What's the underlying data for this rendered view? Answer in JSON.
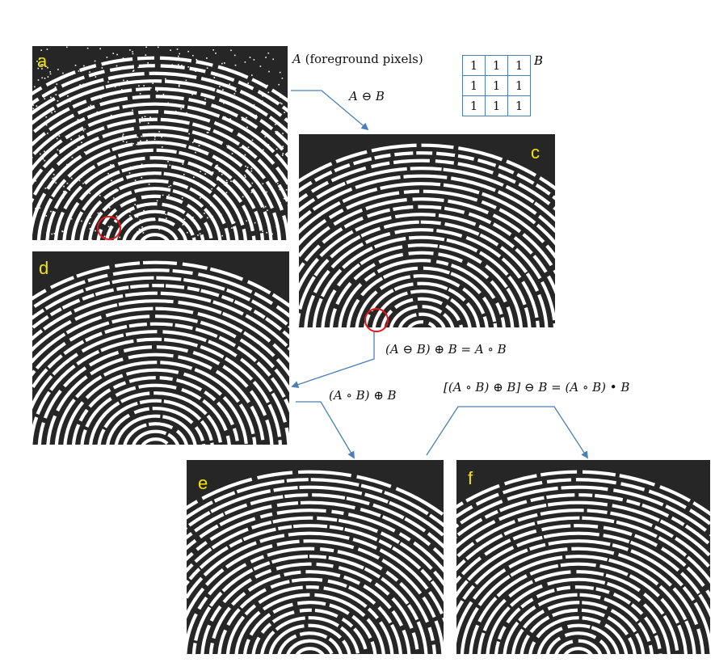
{
  "panels": [
    {
      "id": "a",
      "label": "a",
      "noisy": true
    },
    {
      "id": "c",
      "label": "c",
      "noisy": false
    },
    {
      "id": "d",
      "label": "d",
      "noisy": false
    },
    {
      "id": "e",
      "label": "e",
      "noisy": false
    },
    {
      "id": "f",
      "label": "f",
      "noisy": false
    }
  ],
  "annotations": {
    "foreground": {
      "symbol": "A",
      "text": " (foreground pixels)"
    },
    "erosion": "A ⊖ B",
    "opening": "(A ⊖ B) ⊕ B = A ∘ B",
    "dilation_of_opening": "(A ∘ B) ⊕ B",
    "closing_of_opening": "[(A ∘ B) ⊕ B] ⊖ B = (A ∘ B) • B"
  },
  "structuring_element": {
    "name": "B",
    "rows": [
      [
        "1",
        "1",
        "1"
      ],
      [
        "1",
        "1",
        "1"
      ],
      [
        "1",
        "1",
        "1"
      ]
    ]
  },
  "colors": {
    "arrow": "#4a7fb5",
    "highlight": "#e8141b",
    "label": "#f5e400",
    "panel_bg": "#262626"
  }
}
